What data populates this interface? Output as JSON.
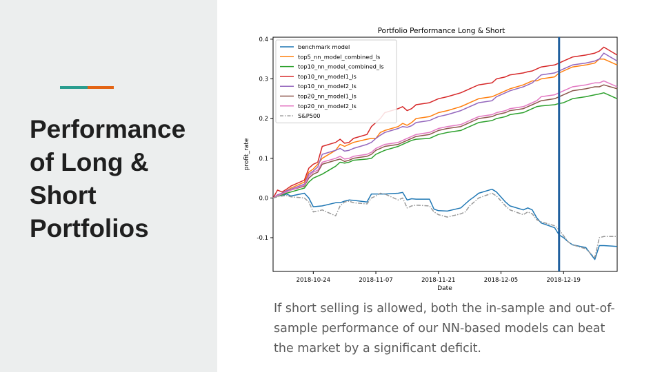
{
  "slide": {
    "title": "Performance of Long & Short Portfolios",
    "caption": "If short selling is allowed, both the in-sample and out-of-sample performance of our NN-based models can beat the market by a significant deficit."
  },
  "chart_data": {
    "type": "line",
    "title": "Portfolio Performance Long & Short",
    "xlabel": "Date",
    "ylabel": "profit_rate",
    "ylim": [
      -0.185,
      0.405
    ],
    "xticks": [
      "2018-10-24",
      "2018-11-07",
      "2018-11-21",
      "2018-12-05",
      "2018-12-19"
    ],
    "yticks": [
      "-0.1",
      "0.0",
      "0.1",
      "0.2",
      "0.3",
      "0.4"
    ],
    "ytick_values": [
      -0.1,
      0.0,
      0.1,
      0.2,
      0.3,
      0.4
    ],
    "x": [
      "2018-10-15",
      "2018-10-16",
      "2018-10-17",
      "2018-10-18",
      "2018-10-19",
      "2018-10-22",
      "2018-10-23",
      "2018-10-24",
      "2018-10-25",
      "2018-10-26",
      "2018-10-29",
      "2018-10-30",
      "2018-10-31",
      "2018-11-01",
      "2018-11-02",
      "2018-11-05",
      "2018-11-06",
      "2018-11-07",
      "2018-11-08",
      "2018-11-09",
      "2018-11-12",
      "2018-11-13",
      "2018-11-14",
      "2018-11-15",
      "2018-11-16",
      "2018-11-19",
      "2018-11-20",
      "2018-11-21",
      "2018-11-23",
      "2018-11-26",
      "2018-11-27",
      "2018-11-28",
      "2018-11-29",
      "2018-11-30",
      "2018-12-03",
      "2018-12-04",
      "2018-12-06",
      "2018-12-07",
      "2018-12-10",
      "2018-12-11",
      "2018-12-12",
      "2018-12-13",
      "2018-12-14",
      "2018-12-17",
      "2018-12-18",
      "2018-12-19",
      "2018-12-20",
      "2018-12-21",
      "2018-12-24",
      "2018-12-26",
      "2018-12-27",
      "2018-12-28",
      "2018-12-31"
    ],
    "vertical_marker": "2018-12-18",
    "legend_position": "upper left",
    "grid": false,
    "series": [
      {
        "name": "benchmark model",
        "color": "#1f77b4",
        "style": "solid",
        "values": [
          0.0,
          0.008,
          0.005,
          0.01,
          0.005,
          0.012,
          0.0,
          -0.022,
          -0.021,
          -0.02,
          -0.012,
          -0.012,
          -0.008,
          -0.005,
          -0.006,
          -0.01,
          0.01,
          0.01,
          0.01,
          0.01,
          0.012,
          0.014,
          -0.005,
          -0.002,
          -0.003,
          -0.003,
          -0.028,
          -0.032,
          -0.033,
          -0.025,
          -0.015,
          -0.005,
          0.003,
          0.012,
          0.022,
          0.015,
          -0.01,
          -0.02,
          -0.03,
          -0.025,
          -0.03,
          -0.05,
          -0.063,
          -0.075,
          -0.093,
          -0.1,
          -0.11,
          -0.118,
          -0.125,
          -0.155,
          -0.12,
          -0.12,
          -0.122
        ]
      },
      {
        "name": "top5_nn_model_combined_ls",
        "color": "#ff7f0e",
        "style": "solid",
        "values": [
          0.0,
          0.005,
          0.012,
          0.018,
          0.025,
          0.04,
          0.065,
          0.073,
          0.085,
          0.1,
          0.12,
          0.135,
          0.13,
          0.135,
          0.14,
          0.148,
          0.15,
          0.15,
          0.165,
          0.17,
          0.18,
          0.188,
          0.183,
          0.19,
          0.2,
          0.205,
          0.21,
          0.215,
          0.22,
          0.23,
          0.235,
          0.24,
          0.245,
          0.25,
          0.255,
          0.26,
          0.27,
          0.275,
          0.285,
          0.29,
          0.295,
          0.295,
          0.3,
          0.305,
          0.315,
          0.32,
          0.325,
          0.33,
          0.335,
          0.34,
          0.35,
          0.35,
          0.335
        ]
      },
      {
        "name": "top10_nn_model_combined_ls",
        "color": "#2ca02c",
        "style": "solid",
        "values": [
          0.0,
          0.005,
          0.008,
          0.012,
          0.015,
          0.025,
          0.04,
          0.05,
          0.055,
          0.06,
          0.08,
          0.09,
          0.088,
          0.09,
          0.095,
          0.098,
          0.1,
          0.11,
          0.115,
          0.12,
          0.13,
          0.135,
          0.14,
          0.145,
          0.148,
          0.15,
          0.155,
          0.16,
          0.165,
          0.17,
          0.175,
          0.18,
          0.185,
          0.19,
          0.195,
          0.2,
          0.205,
          0.21,
          0.215,
          0.22,
          0.225,
          0.23,
          0.232,
          0.235,
          0.238,
          0.24,
          0.245,
          0.25,
          0.255,
          0.26,
          0.262,
          0.265,
          0.25
        ]
      },
      {
        "name": "top10_nn_model1_ls",
        "color": "#d62728",
        "style": "solid",
        "values": [
          0.0,
          0.02,
          0.015,
          0.022,
          0.03,
          0.045,
          0.075,
          0.085,
          0.09,
          0.13,
          0.14,
          0.148,
          0.138,
          0.14,
          0.15,
          0.16,
          0.18,
          0.19,
          0.2,
          0.215,
          0.225,
          0.23,
          0.22,
          0.225,
          0.235,
          0.24,
          0.245,
          0.25,
          0.255,
          0.265,
          0.27,
          0.275,
          0.28,
          0.285,
          0.29,
          0.3,
          0.305,
          0.31,
          0.315,
          0.318,
          0.32,
          0.325,
          0.33,
          0.335,
          0.34,
          0.345,
          0.35,
          0.355,
          0.36,
          0.365,
          0.37,
          0.38,
          0.36
        ]
      },
      {
        "name": "top10_nn_model2_ls",
        "color": "#9467bd",
        "style": "solid",
        "values": [
          0.0,
          0.008,
          0.012,
          0.018,
          0.022,
          0.035,
          0.06,
          0.068,
          0.078,
          0.11,
          0.12,
          0.125,
          0.118,
          0.12,
          0.125,
          0.135,
          0.14,
          0.15,
          0.158,
          0.165,
          0.175,
          0.18,
          0.178,
          0.182,
          0.19,
          0.195,
          0.2,
          0.205,
          0.21,
          0.22,
          0.225,
          0.23,
          0.235,
          0.24,
          0.245,
          0.255,
          0.265,
          0.27,
          0.28,
          0.285,
          0.29,
          0.3,
          0.31,
          0.315,
          0.32,
          0.325,
          0.33,
          0.335,
          0.34,
          0.345,
          0.35,
          0.365,
          0.345
        ]
      },
      {
        "name": "top20_nn_model1_ls",
        "color": "#8c564b",
        "style": "solid",
        "values": [
          0.0,
          0.006,
          0.01,
          0.015,
          0.02,
          0.03,
          0.05,
          0.06,
          0.065,
          0.085,
          0.095,
          0.098,
          0.092,
          0.095,
          0.1,
          0.105,
          0.11,
          0.12,
          0.125,
          0.13,
          0.135,
          0.14,
          0.145,
          0.15,
          0.155,
          0.16,
          0.165,
          0.17,
          0.175,
          0.18,
          0.185,
          0.19,
          0.195,
          0.2,
          0.205,
          0.21,
          0.215,
          0.22,
          0.225,
          0.23,
          0.235,
          0.24,
          0.245,
          0.25,
          0.255,
          0.26,
          0.265,
          0.27,
          0.275,
          0.28,
          0.28,
          0.285,
          0.275
        ]
      },
      {
        "name": "top20_nn_model2_ls",
        "color": "#e377c2",
        "style": "solid",
        "values": [
          0.0,
          0.006,
          0.01,
          0.015,
          0.02,
          0.032,
          0.055,
          0.065,
          0.07,
          0.09,
          0.1,
          0.105,
          0.098,
          0.1,
          0.105,
          0.11,
          0.115,
          0.125,
          0.13,
          0.135,
          0.14,
          0.145,
          0.15,
          0.155,
          0.16,
          0.165,
          0.17,
          0.175,
          0.18,
          0.185,
          0.19,
          0.195,
          0.2,
          0.205,
          0.21,
          0.215,
          0.22,
          0.225,
          0.23,
          0.235,
          0.24,
          0.245,
          0.255,
          0.26,
          0.265,
          0.27,
          0.275,
          0.28,
          0.285,
          0.29,
          0.29,
          0.295,
          0.28
        ]
      },
      {
        "name": "S&P500",
        "color": "#999999",
        "style": "dashdot",
        "values": [
          0.0,
          0.003,
          0.005,
          0.006,
          0.003,
          0.0,
          -0.01,
          -0.035,
          -0.033,
          -0.03,
          -0.045,
          -0.02,
          -0.01,
          -0.008,
          -0.012,
          -0.015,
          0.0,
          0.005,
          0.012,
          0.01,
          -0.005,
          0.0,
          -0.025,
          -0.02,
          -0.018,
          -0.02,
          -0.035,
          -0.042,
          -0.048,
          -0.04,
          -0.035,
          -0.02,
          -0.01,
          0.0,
          0.012,
          0.005,
          -0.02,
          -0.03,
          -0.042,
          -0.035,
          -0.04,
          -0.055,
          -0.06,
          -0.07,
          -0.08,
          -0.095,
          -0.11,
          -0.118,
          -0.128,
          -0.15,
          -0.1,
          -0.097,
          -0.097
        ]
      }
    ]
  }
}
